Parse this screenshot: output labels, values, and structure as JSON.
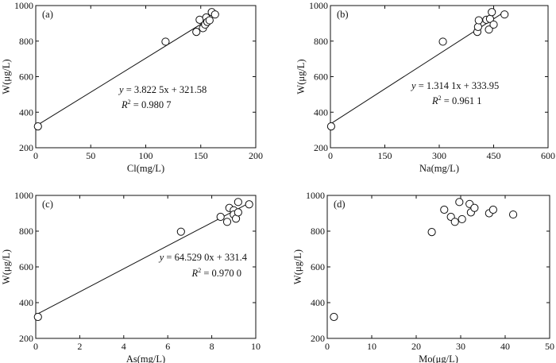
{
  "chart_data": [
    {
      "type": "scatter",
      "panel": "(a)",
      "xlabel": "Cl(mg/L)",
      "ylabel": "W(μg/L)",
      "xlim": [
        0,
        200
      ],
      "ylim": [
        200,
        1000
      ],
      "xticks": [
        0,
        50,
        100,
        150,
        200
      ],
      "yticks": [
        200,
        400,
        600,
        800,
        1000
      ],
      "points": [
        [
          2,
          320
        ],
        [
          118,
          797
        ],
        [
          146,
          852
        ],
        [
          149,
          920
        ],
        [
          152,
          873
        ],
        [
          154,
          893
        ],
        [
          155,
          933
        ],
        [
          156,
          908
        ],
        [
          158,
          917
        ],
        [
          160,
          963
        ],
        [
          163,
          950
        ]
      ],
      "fit": {
        "slope": 3.8225,
        "intercept": 321.58
      },
      "equation_y": "y",
      "equation_rest": " = 3.822 5x + 321.58",
      "r2_text": " = 0.980 7"
    },
    {
      "type": "scatter",
      "panel": "(b)",
      "xlabel": "Na(mg/L)",
      "ylabel": "W(μg/L)",
      "xlim": [
        0,
        600
      ],
      "ylim": [
        200,
        1000
      ],
      "xticks": [
        0,
        150,
        300,
        450,
        600
      ],
      "yticks": [
        200,
        400,
        600,
        800,
        1000
      ],
      "points": [
        [
          2,
          320
        ],
        [
          310,
          797
        ],
        [
          405,
          852
        ],
        [
          407,
          880
        ],
        [
          409,
          917
        ],
        [
          430,
          920
        ],
        [
          437,
          865
        ],
        [
          440,
          925
        ],
        [
          445,
          963
        ],
        [
          450,
          893
        ],
        [
          480,
          950
        ]
      ],
      "fit": {
        "slope": 1.3141,
        "intercept": 333.95
      },
      "equation_y": "y",
      "equation_rest": " = 1.314 1x + 333.95",
      "r2_text": " = 0.961 1"
    },
    {
      "type": "scatter",
      "panel": "(c)",
      "xlabel": "As(mg/L)",
      "ylabel": "W(μg/L)",
      "xlim": [
        0,
        10
      ],
      "ylim": [
        200,
        1000
      ],
      "xticks": [
        0,
        2,
        4,
        6,
        8,
        10
      ],
      "yticks": [
        200,
        400,
        600,
        800,
        1000
      ],
      "points": [
        [
          0.1,
          320
        ],
        [
          6.6,
          797
        ],
        [
          8.4,
          880
        ],
        [
          8.7,
          852
        ],
        [
          8.8,
          930
        ],
        [
          9.0,
          917
        ],
        [
          9.0,
          893
        ],
        [
          9.1,
          870
        ],
        [
          9.2,
          963
        ],
        [
          9.2,
          905
        ],
        [
          9.7,
          950
        ]
      ],
      "fit": {
        "slope": 64.529,
        "intercept": 331.4
      },
      "equation_y": "y",
      "equation_rest": " = 64.529 0x + 331.4",
      "r2_text": " = 0.970 0"
    },
    {
      "type": "scatter",
      "panel": "(d)",
      "xlabel": "Mo(μg/L)",
      "ylabel": "W(μg/L)",
      "xlim": [
        0,
        50
      ],
      "ylim": [
        200,
        1000
      ],
      "xticks": [
        0,
        10,
        20,
        30,
        40,
        50
      ],
      "yticks": [
        200,
        400,
        600,
        800,
        1000
      ],
      "points": [
        [
          1.5,
          320
        ],
        [
          23.5,
          795
        ],
        [
          26.3,
          920
        ],
        [
          27.8,
          880
        ],
        [
          28.7,
          852
        ],
        [
          29.7,
          963
        ],
        [
          30.3,
          867
        ],
        [
          32.0,
          952
        ],
        [
          32.3,
          905
        ],
        [
          33.1,
          930
        ],
        [
          36.4,
          900
        ],
        [
          37.3,
          920
        ],
        [
          41.8,
          893
        ]
      ]
    }
  ]
}
